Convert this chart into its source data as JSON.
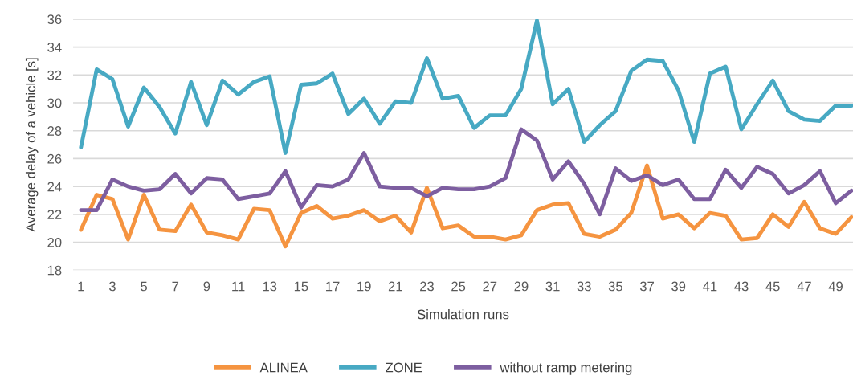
{
  "chart_data": {
    "type": "line",
    "xlabel": "Simulation runs",
    "ylabel": "Average delay of a vehicle [s]",
    "categories": [
      "1",
      null,
      "3",
      null,
      "5",
      null,
      "7",
      null,
      "9",
      null,
      "11",
      null,
      "13",
      null,
      "15",
      null,
      "17",
      null,
      "19",
      null,
      "21",
      null,
      "23",
      null,
      "25",
      null,
      "27",
      null,
      "29",
      null,
      "31",
      null,
      "33",
      null,
      "35",
      null,
      "37",
      null,
      "39",
      null,
      "41",
      null,
      "43",
      null,
      "45",
      null,
      "47",
      null,
      "49",
      null
    ],
    "series": [
      {
        "name": "ALINEA",
        "color": "#f59440",
        "values": [
          20.9,
          23.4,
          23.1,
          20.2,
          23.4,
          20.9,
          20.8,
          22.7,
          20.7,
          20.5,
          20.2,
          22.4,
          22.3,
          19.7,
          22.1,
          22.6,
          21.7,
          21.9,
          22.3,
          21.5,
          21.9,
          20.7,
          23.9,
          21.0,
          21.2,
          20.4,
          20.4,
          20.2,
          20.5,
          22.3,
          22.7,
          22.8,
          20.6,
          20.4,
          20.9,
          22.1,
          25.5,
          21.7,
          22.0,
          21.0,
          22.1,
          21.9,
          20.2,
          20.3,
          22.0,
          21.1,
          22.9,
          21.0,
          20.6,
          21.8
        ]
      },
      {
        "name": "ZONE",
        "color": "#47a9c3",
        "values": [
          26.8,
          32.4,
          31.7,
          28.3,
          31.1,
          29.7,
          27.8,
          31.5,
          28.4,
          31.6,
          30.6,
          31.5,
          31.9,
          26.4,
          31.3,
          31.4,
          32.1,
          29.2,
          30.3,
          28.5,
          30.1,
          30.0,
          33.2,
          30.3,
          30.5,
          28.2,
          29.1,
          29.1,
          31.0,
          35.9,
          29.9,
          31.0,
          27.2,
          28.4,
          29.4,
          32.3,
          33.1,
          33.0,
          30.9,
          27.2,
          32.1,
          32.6,
          28.1,
          29.9,
          31.6,
          29.4,
          28.8,
          28.7,
          29.8,
          29.8
        ]
      },
      {
        "name": "without ramp metering",
        "color": "#7d5ea0",
        "values": [
          22.3,
          22.3,
          24.5,
          24.0,
          23.7,
          23.8,
          24.9,
          23.5,
          24.6,
          24.5,
          23.1,
          23.3,
          23.5,
          25.1,
          22.5,
          24.1,
          24.0,
          24.5,
          26.4,
          24.0,
          23.9,
          23.9,
          23.3,
          23.9,
          23.8,
          23.8,
          24.0,
          24.6,
          28.1,
          27.3,
          24.5,
          25.8,
          24.2,
          22.0,
          25.3,
          24.4,
          24.8,
          24.1,
          24.5,
          23.1,
          23.1,
          25.2,
          23.9,
          25.4,
          24.9,
          23.5,
          24.1,
          25.1,
          22.8,
          23.7
        ]
      }
    ],
    "ylim": [
      18,
      36
    ],
    "yticks": [
      18,
      20,
      22,
      24,
      26,
      28,
      30,
      32,
      34,
      36
    ],
    "grid": "y",
    "legend": "bottom",
    "marker": "none",
    "line_style": "solid"
  }
}
